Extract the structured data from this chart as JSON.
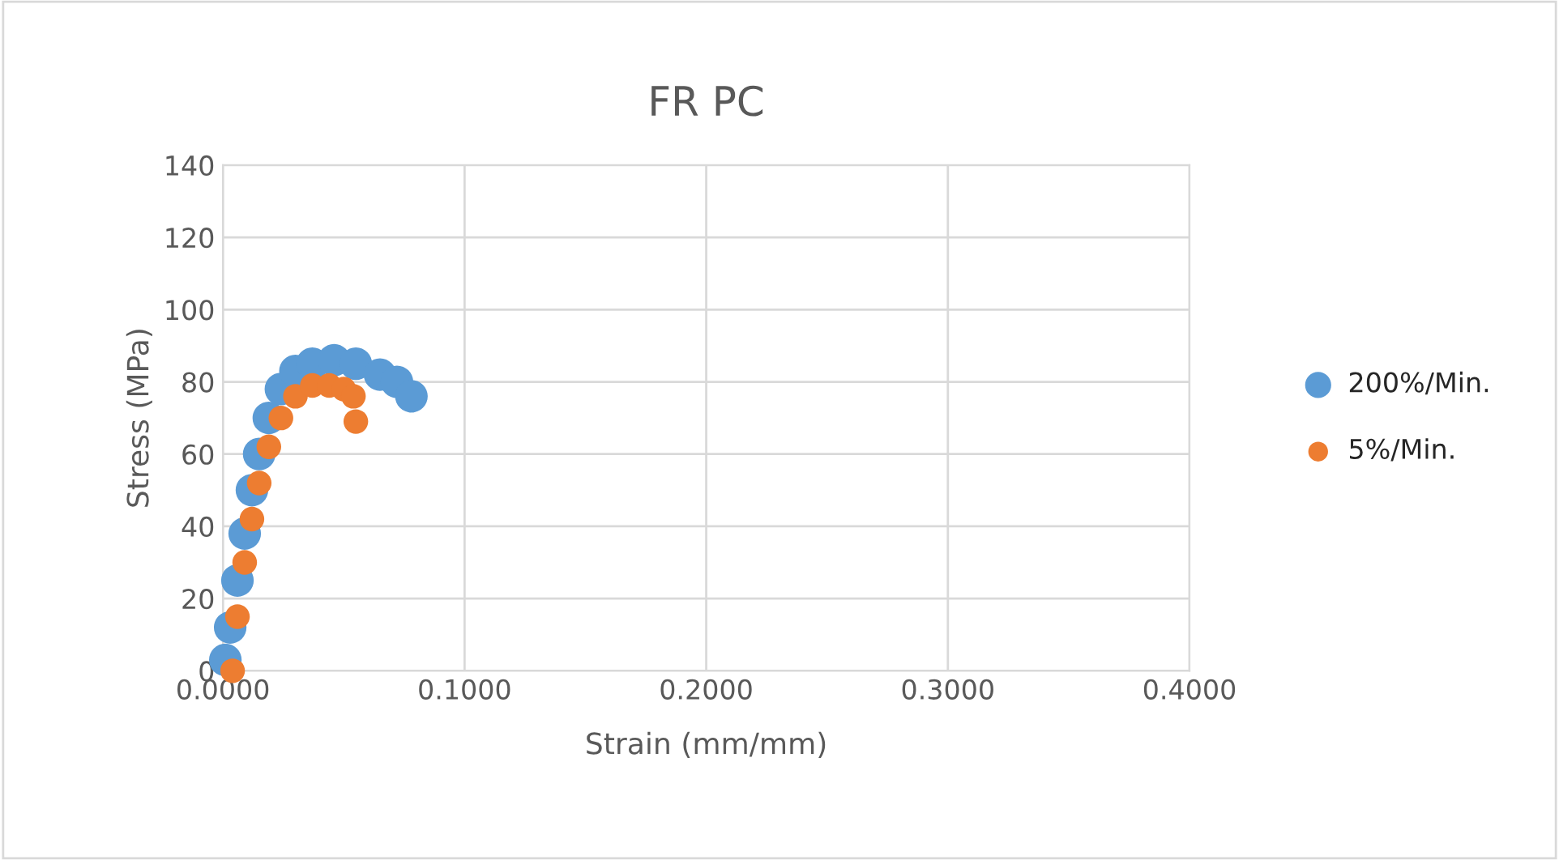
{
  "chart_data": {
    "type": "scatter",
    "title": "FR PC",
    "xlabel": "Strain (mm/mm)",
    "ylabel": "Stress (MPa)",
    "xlim": [
      0,
      0.4
    ],
    "xticks": [
      {
        "value": 0,
        "label": "0.0000"
      },
      {
        "value": 0.1,
        "label": "0.1000"
      },
      {
        "value": 0.2,
        "label": "0.2000"
      },
      {
        "value": 0.3,
        "label": "0.3000"
      },
      {
        "value": 0.4,
        "label": "0.4000"
      }
    ],
    "ylim": [
      0,
      140
    ],
    "yticks": [
      0,
      20,
      40,
      60,
      80,
      100,
      120,
      140
    ],
    "grid": true,
    "legend": "right",
    "marker": "circle",
    "series": [
      {
        "name": "200%/Min.",
        "color": "#5b9bd5",
        "x": [
          0.001,
          0.003,
          0.006,
          0.009,
          0.012,
          0.015,
          0.019,
          0.024,
          0.03,
          0.037,
          0.046,
          0.055,
          0.065,
          0.072,
          0.078
        ],
        "values": [
          3,
          12,
          25,
          38,
          50,
          60,
          70,
          78,
          83,
          85,
          86,
          85,
          82,
          80,
          76
        ]
      },
      {
        "name": "5%/Min.",
        "color": "#ed7d31",
        "x": [
          0.004,
          0.006,
          0.009,
          0.012,
          0.015,
          0.019,
          0.024,
          0.03,
          0.037,
          0.044,
          0.05,
          0.054,
          0.055
        ],
        "values": [
          0,
          15,
          30,
          42,
          52,
          62,
          70,
          76,
          79,
          79,
          78,
          76,
          69
        ]
      }
    ]
  }
}
